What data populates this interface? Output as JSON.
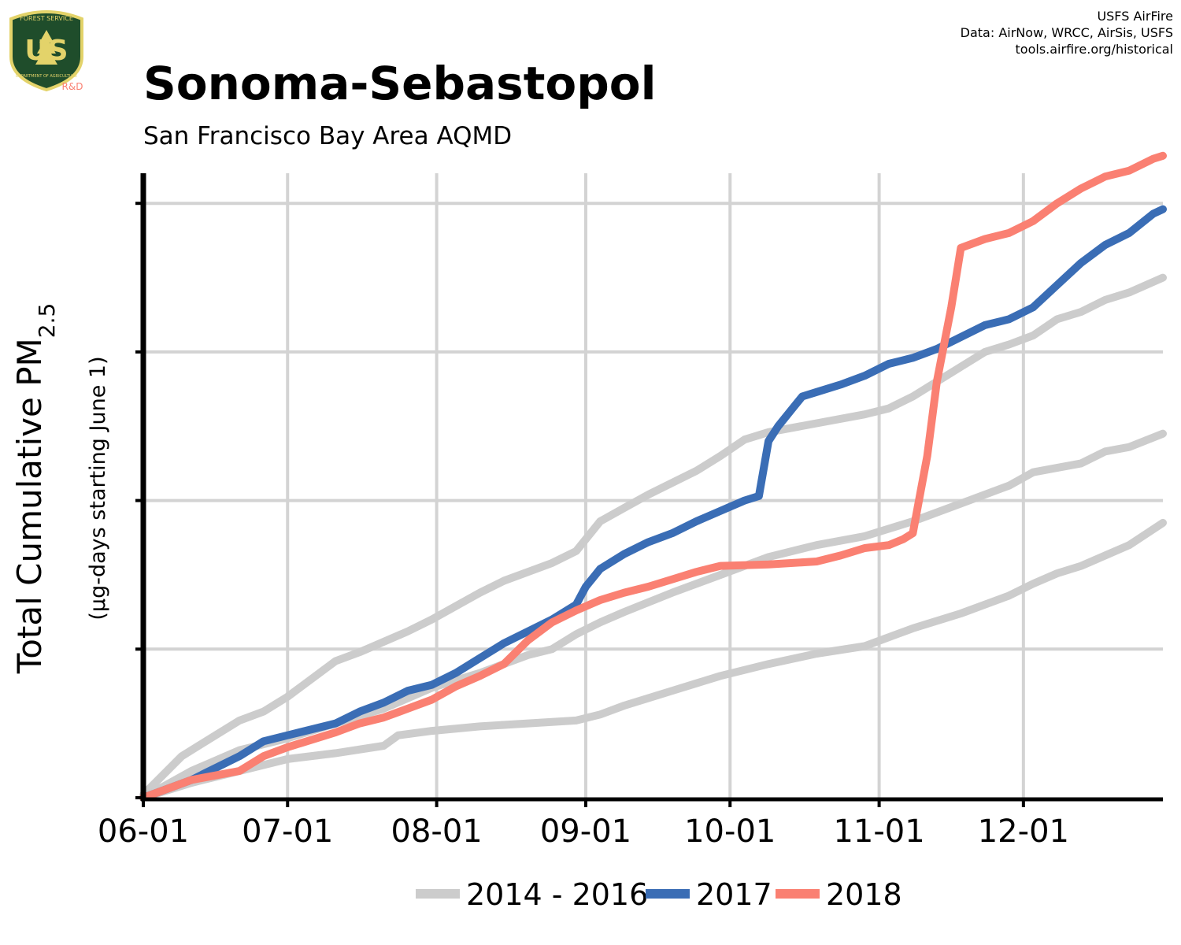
{
  "header": {
    "title": "Sonoma-Sebastopol",
    "subtitle": "San Francisco Bay Area AQMD",
    "credits": [
      "USFS AirFire",
      "Data: AirNow, WRCC, AirSis, USFS",
      "tools.airfire.org/historical"
    ]
  },
  "logo": {
    "icon": "usfs-shield-icon",
    "arc_text": "FOREST SERVICE",
    "center_text": "US",
    "bottom_text": "DEPARTMENT OF AGRICULTURE",
    "tag": "R&D"
  },
  "colors": {
    "historical": "#cccccc",
    "y2017": "#3a6db5",
    "y2018": "#fa8072",
    "grid": "#d3d3d3",
    "axis": "#000000"
  },
  "chart_data": {
    "type": "line",
    "ylabel_main": "Total Cumulative PM",
    "ylabel_sub": "2.5",
    "ylabel_secondary": "(µg-days starting June 1)",
    "x_unit": "day of season (June 1 = 0)",
    "xlim": [
      0,
      212
    ],
    "ylim": [
      0,
      4.2
    ],
    "y_ticks": [
      0,
      1,
      2,
      3,
      4
    ],
    "y_tick_labels_shown": false,
    "x_ticks": [
      {
        "day": 0,
        "label": "06-01"
      },
      {
        "day": 30,
        "label": "07-01"
      },
      {
        "day": 61,
        "label": "08-01"
      },
      {
        "day": 92,
        "label": "09-01"
      },
      {
        "day": 122,
        "label": "10-01"
      },
      {
        "day": 153,
        "label": "11-01"
      },
      {
        "day": 183,
        "label": "12-01"
      }
    ],
    "grid": true,
    "legend": {
      "placement": "bottom",
      "entries": [
        "2014 - 2016",
        "2017",
        "2018"
      ]
    },
    "series": [
      {
        "name": "2014 - 2016",
        "color": "#cccccc",
        "group": "historical",
        "x": [
          0,
          8,
          15,
          20,
          25,
          30,
          40,
          45,
          55,
          60,
          70,
          75,
          85,
          90,
          95,
          100,
          105,
          110,
          115,
          120,
          125,
          130,
          140,
          150,
          155,
          160,
          165,
          170,
          175,
          180,
          185,
          190,
          195,
          200,
          205,
          212
        ],
        "y": [
          0.02,
          0.28,
          0.42,
          0.52,
          0.58,
          0.68,
          0.92,
          0.98,
          1.12,
          1.2,
          1.38,
          1.46,
          1.58,
          1.66,
          1.86,
          1.95,
          2.04,
          2.12,
          2.2,
          2.3,
          2.41,
          2.46,
          2.52,
          2.58,
          2.62,
          2.7,
          2.8,
          2.9,
          3.0,
          3.05,
          3.11,
          3.22,
          3.27,
          3.35,
          3.4,
          3.5
        ]
      },
      {
        "name": "2014 - 2016",
        "color": "#cccccc",
        "group": "historical",
        "x": [
          0,
          10,
          20,
          30,
          40,
          50,
          60,
          70,
          80,
          85,
          90,
          95,
          100,
          110,
          120,
          130,
          140,
          150,
          160,
          170,
          180,
          185,
          190,
          195,
          200,
          205,
          212
        ],
        "y": [
          0.0,
          0.18,
          0.32,
          0.4,
          0.5,
          0.6,
          0.74,
          0.84,
          0.96,
          1.0,
          1.1,
          1.18,
          1.25,
          1.38,
          1.5,
          1.62,
          1.7,
          1.76,
          1.86,
          1.98,
          2.1,
          2.19,
          2.22,
          2.25,
          2.33,
          2.36,
          2.45
        ]
      },
      {
        "name": "2014 - 2016",
        "color": "#cccccc",
        "group": "historical",
        "x": [
          0,
          10,
          20,
          30,
          40,
          50,
          53,
          60,
          70,
          80,
          90,
          95,
          100,
          110,
          120,
          130,
          140,
          150,
          155,
          160,
          170,
          175,
          180,
          185,
          190,
          195,
          200,
          205,
          212
        ],
        "y": [
          0.0,
          0.1,
          0.18,
          0.26,
          0.3,
          0.35,
          0.42,
          0.45,
          0.48,
          0.5,
          0.52,
          0.56,
          0.62,
          0.72,
          0.82,
          0.9,
          0.97,
          1.02,
          1.08,
          1.14,
          1.24,
          1.3,
          1.36,
          1.44,
          1.51,
          1.56,
          1.63,
          1.7,
          1.85
        ]
      },
      {
        "name": "2017",
        "color": "#3a6db5",
        "group": "y2017",
        "x": [
          0,
          10,
          20,
          25,
          30,
          40,
          45,
          50,
          55,
          60,
          65,
          70,
          75,
          80,
          85,
          90,
          92,
          94,
          95,
          100,
          105,
          110,
          115,
          120,
          125,
          128,
          130,
          132,
          135,
          137,
          140,
          145,
          150,
          155,
          160,
          165,
          170,
          175,
          180,
          185,
          190,
          195,
          200,
          205,
          210,
          212
        ],
        "y": [
          0.0,
          0.12,
          0.28,
          0.38,
          0.42,
          0.5,
          0.58,
          0.64,
          0.72,
          0.76,
          0.84,
          0.94,
          1.04,
          1.12,
          1.2,
          1.3,
          1.42,
          1.5,
          1.54,
          1.64,
          1.72,
          1.78,
          1.86,
          1.93,
          2.0,
          2.03,
          2.4,
          2.5,
          2.62,
          2.7,
          2.73,
          2.78,
          2.84,
          2.92,
          2.96,
          3.02,
          3.1,
          3.18,
          3.22,
          3.3,
          3.45,
          3.6,
          3.72,
          3.8,
          3.93,
          3.96
        ]
      },
      {
        "name": "2018",
        "color": "#fa8072",
        "group": "y2018",
        "x": [
          0,
          10,
          20,
          25,
          30,
          40,
          45,
          50,
          55,
          60,
          65,
          70,
          75,
          80,
          85,
          90,
          95,
          100,
          105,
          110,
          115,
          120,
          130,
          135,
          140,
          145,
          150,
          155,
          158,
          160,
          163,
          165,
          168,
          170,
          175,
          180,
          185,
          190,
          195,
          200,
          205,
          210,
          212
        ],
        "y": [
          0.0,
          0.12,
          0.18,
          0.28,
          0.34,
          0.44,
          0.5,
          0.54,
          0.6,
          0.66,
          0.75,
          0.82,
          0.9,
          1.06,
          1.18,
          1.26,
          1.33,
          1.38,
          1.42,
          1.47,
          1.52,
          1.56,
          1.57,
          1.58,
          1.59,
          1.63,
          1.68,
          1.7,
          1.74,
          1.78,
          2.3,
          2.8,
          3.3,
          3.7,
          3.76,
          3.8,
          3.88,
          4.0,
          4.1,
          4.18,
          4.22,
          4.3,
          4.32
        ]
      }
    ]
  }
}
